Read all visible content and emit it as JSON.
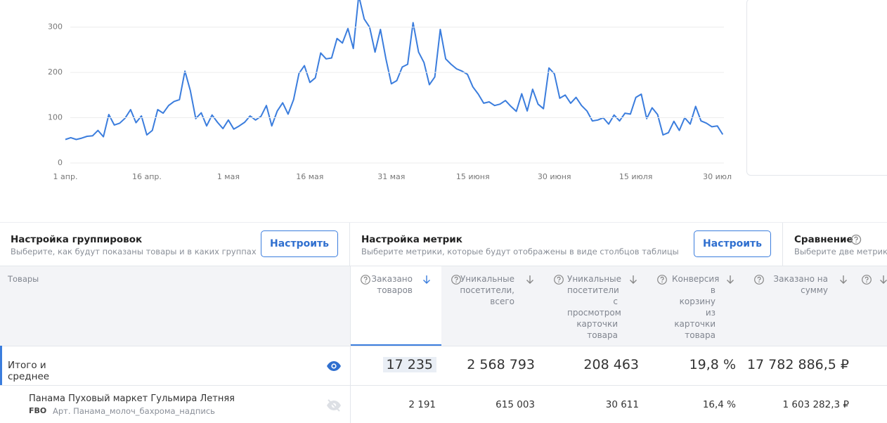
{
  "chart_data": {
    "type": "line",
    "categories": [
      "1 апр.",
      null,
      null,
      null,
      null,
      null,
      null,
      null,
      null,
      null,
      null,
      null,
      null,
      null,
      null,
      "16 апр.",
      null,
      null,
      null,
      null,
      null,
      null,
      null,
      null,
      null,
      null,
      null,
      null,
      null,
      null,
      "1 мая",
      null,
      null,
      null,
      null,
      null,
      null,
      null,
      null,
      null,
      null,
      null,
      null,
      null,
      null,
      "16 мая",
      null,
      null,
      null,
      null,
      null,
      null,
      null,
      null,
      null,
      null,
      null,
      null,
      null,
      null,
      "31 мая",
      null,
      null,
      null,
      null,
      null,
      null,
      null,
      null,
      null,
      null,
      null,
      null,
      null,
      null,
      "15 июня",
      null,
      null,
      null,
      null,
      null,
      null,
      null,
      null,
      null,
      null,
      null,
      null,
      null,
      null,
      "30 июня",
      null,
      null,
      null,
      null,
      null,
      null,
      null,
      null,
      null,
      null,
      null,
      null,
      null,
      null,
      "15 июля",
      null,
      null,
      null,
      null,
      null,
      null,
      null,
      null,
      null,
      null,
      null,
      null,
      null,
      null,
      "30 июл",
      null
    ],
    "series": [
      {
        "color": "#3b7ddd",
        "values": [
          52,
          56,
          52,
          55,
          59,
          60,
          72,
          58,
          107,
          84,
          88,
          99,
          118,
          89,
          104,
          62,
          72,
          118,
          110,
          127,
          136,
          140,
          203,
          160,
          98,
          111,
          82,
          106,
          90,
          76,
          95,
          75,
          82,
          90,
          104,
          95,
          103,
          127,
          82,
          115,
          133,
          108,
          140,
          198,
          215,
          178,
          188,
          243,
          230,
          232,
          275,
          265,
          297,
          253,
          370,
          318,
          300,
          245,
          295,
          230,
          175,
          182,
          212,
          218,
          310,
          245,
          222,
          173,
          190,
          295,
          230,
          218,
          208,
          203,
          196,
          168,
          152,
          132,
          135,
          127,
          130,
          138,
          125,
          114,
          153,
          115,
          163,
          130,
          120,
          210,
          197,
          143,
          150,
          132,
          145,
          127,
          115,
          93,
          95,
          100,
          86,
          106,
          93,
          110,
          108,
          145,
          152,
          98,
          122,
          107,
          62,
          67,
          92,
          72,
          100,
          86,
          125,
          93,
          88,
          80,
          82,
          63
        ]
      }
    ],
    "ylim": [
      0,
      360
    ],
    "yticks": [
      0,
      100,
      200,
      300
    ],
    "grid": true
  },
  "grouping": {
    "title": "Настройка группировок",
    "subtitle": "Выберите, как будут показаны товары и в каких группах",
    "button": "Настроить"
  },
  "metrics": {
    "title": "Настройка метрик",
    "subtitle": "Выберите метрики, которые будут отображены в виде столбцов таблицы",
    "button": "Настроить"
  },
  "comparison": {
    "title": "Сравнение",
    "subtitle": "Выберите две метрики"
  },
  "table": {
    "first_header": "Товары",
    "columns": [
      "Заказано товаров",
      "Уникальные посетители, всего",
      "Уникальные посетители с просмотром карточки товара",
      "Конверсия в корзину из карточки товара",
      "Заказано на сумму"
    ],
    "rows": [
      {
        "name": "Итого и среднее",
        "cells": [
          "17 235",
          "2 568 793",
          "208 463",
          "19,8 %",
          "17 782 886,5 ₽"
        ]
      },
      {
        "name": "Панама Пуховый маркет Гульмира Летняя",
        "tag": "FBO",
        "article": "Арт. Панама_молоч_бахрома_надпись",
        "cells": [
          "2 191",
          "615 003",
          "30 611",
          "16,4 %",
          "1 603 282,3 ₽"
        ]
      }
    ]
  }
}
